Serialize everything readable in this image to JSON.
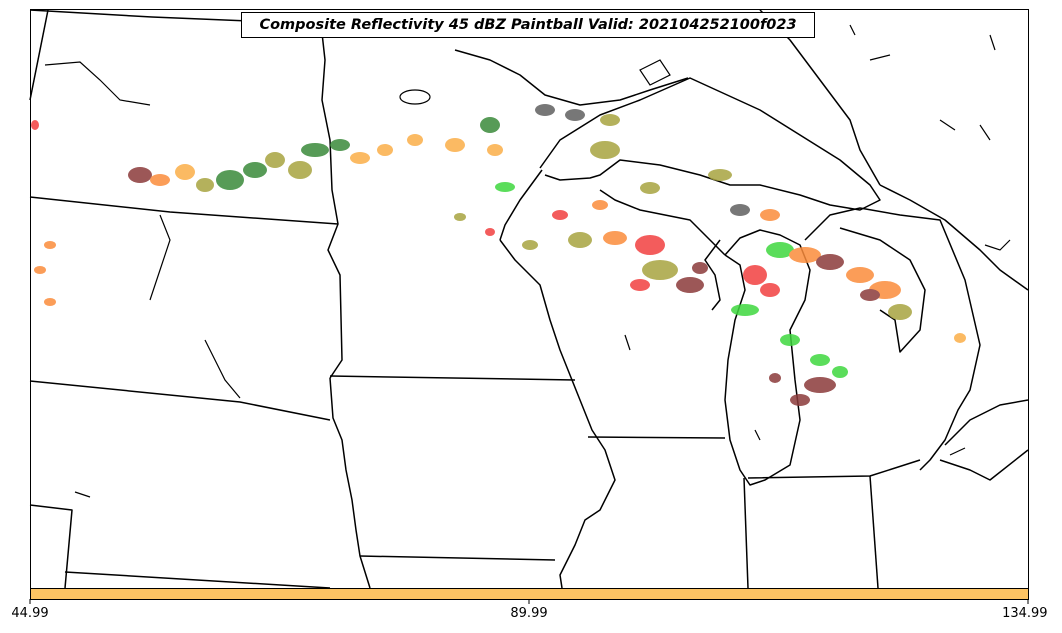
{
  "title": "Composite Reflectivity 45 dBZ Paintball Valid: 202104252100f023",
  "colorbar": {
    "color": "#fdc463",
    "tick_labels": [
      "44.99",
      "89.99",
      "134.99"
    ]
  },
  "echo_colors": {
    "red": "#f24040",
    "green": "#3fd83f",
    "dark_green": "#3a8a3a",
    "olive": "#a8a440",
    "orange": "#fb8c3c",
    "light_orange": "#fbae48",
    "dark_red": "#8b3a3a",
    "gray": "#606060"
  }
}
